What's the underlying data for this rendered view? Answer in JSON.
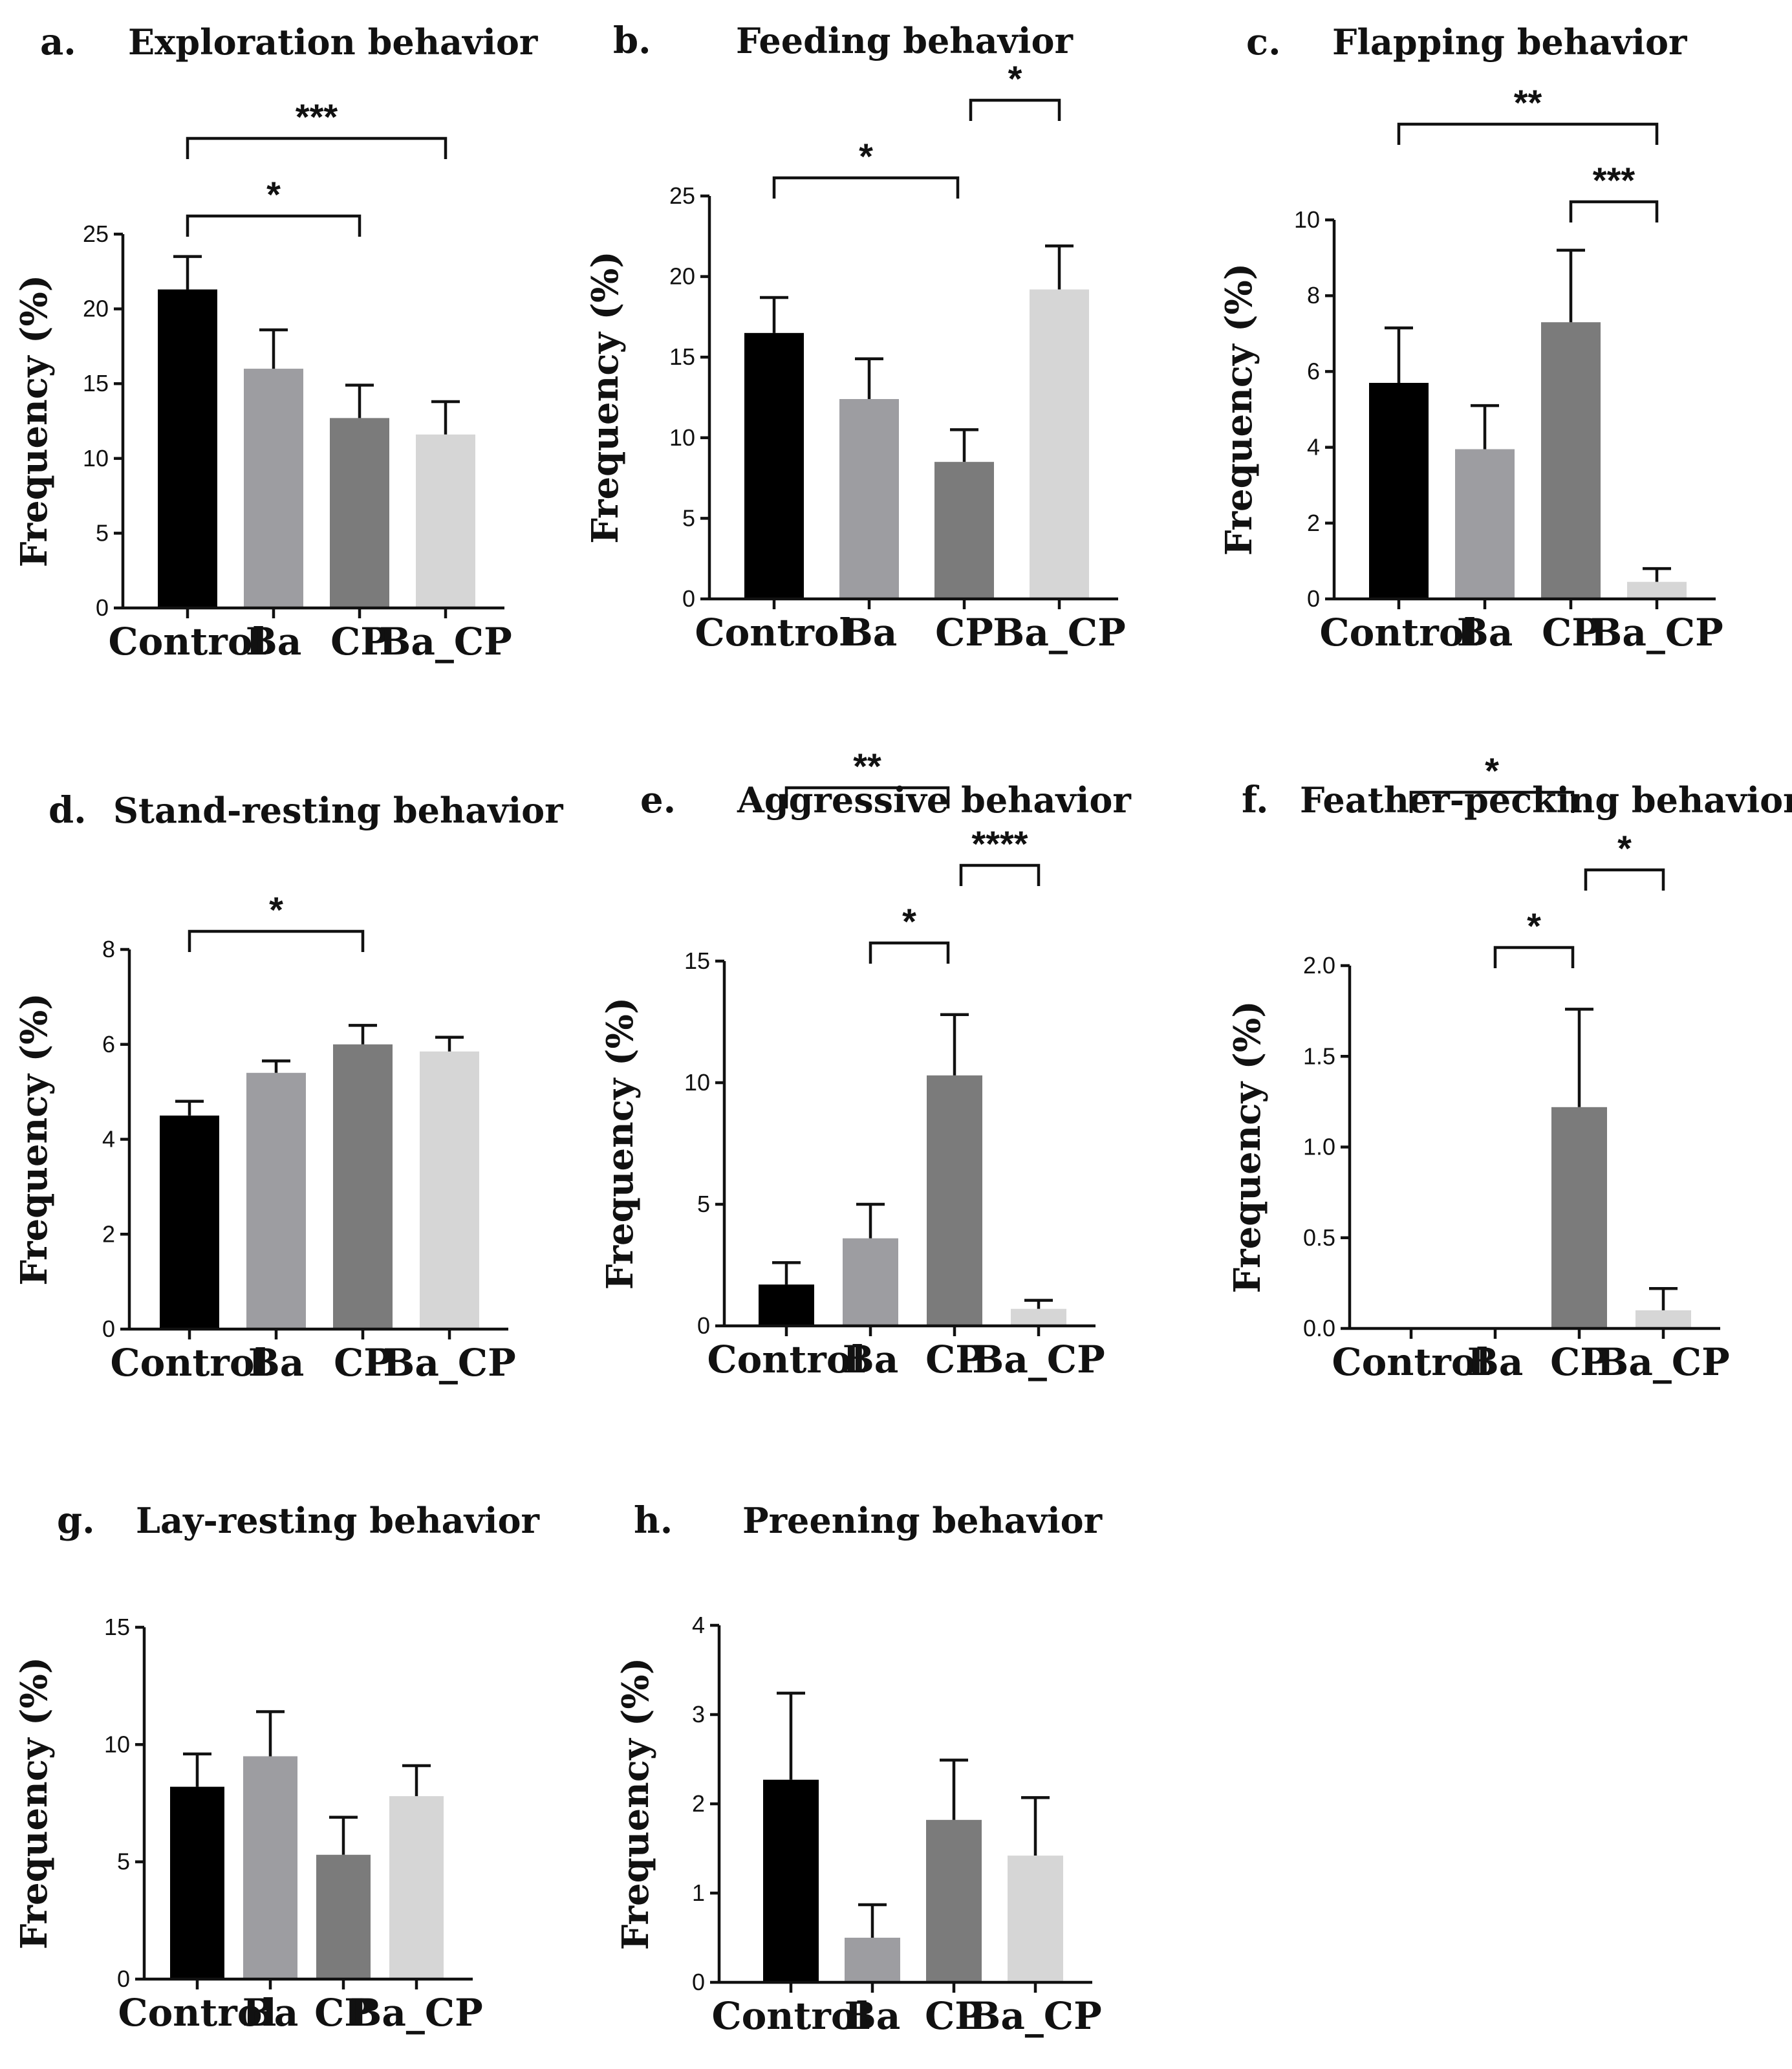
{
  "colors": {
    "Control": "#000000",
    "Ba": "#9d9da1",
    "CP": "#7b7b7b",
    "Ba_CP": "#d6d6d6",
    "axis": "#111111"
  },
  "chart_data": [
    {
      "type": "bar",
      "panel": "a.",
      "title": "Exploration behavior",
      "ylabel": "Frequency (%)",
      "xlabel": "",
      "categories": [
        "Control",
        "Ba",
        "CP",
        "Ba_CP"
      ],
      "values": [
        21.3,
        16.0,
        12.7,
        11.6
      ],
      "errors": [
        2.2,
        2.6,
        2.2,
        2.2
      ],
      "ylim": [
        0,
        25
      ],
      "yticks": [
        0,
        5,
        10,
        15,
        20,
        25
      ],
      "ytick_labels": [
        "0",
        "5",
        "10",
        "15",
        "20",
        "25"
      ],
      "significance": [
        {
          "from": 0,
          "to": 2,
          "label": "*"
        },
        {
          "from": 0,
          "to": 3,
          "label": "***"
        }
      ]
    },
    {
      "type": "bar",
      "panel": "b.",
      "title": "Feeding behavior",
      "ylabel": "Frequency (%)",
      "xlabel": "",
      "categories": [
        "Control",
        "Ba",
        "CP",
        "Ba_CP"
      ],
      "values": [
        16.5,
        12.4,
        8.5,
        19.2
      ],
      "errors": [
        2.2,
        2.5,
        2.0,
        2.7
      ],
      "ylim": [
        0,
        25
      ],
      "yticks": [
        0,
        5,
        10,
        15,
        20,
        25
      ],
      "ytick_labels": [
        "0",
        "5",
        "10",
        "15",
        "20",
        "25"
      ],
      "significance": [
        {
          "from": 0,
          "to": 2,
          "label": "*"
        },
        {
          "from": 2,
          "to": 3,
          "label": "*"
        }
      ]
    },
    {
      "type": "bar",
      "panel": "c.",
      "title": "Flapping behavior",
      "ylabel": "Frequency (%)",
      "xlabel": "",
      "categories": [
        "Control",
        "Ba",
        "CP",
        "Ba_CP"
      ],
      "values": [
        5.7,
        3.95,
        7.3,
        0.45
      ],
      "errors": [
        1.45,
        1.15,
        1.9,
        0.35
      ],
      "ylim": [
        0,
        10
      ],
      "yticks": [
        0,
        2,
        4,
        6,
        8,
        10
      ],
      "ytick_labels": [
        "0",
        "2",
        "4",
        "6",
        "8",
        "10"
      ],
      "significance": [
        {
          "from": 2,
          "to": 3,
          "label": "***"
        },
        {
          "from": 0,
          "to": 3,
          "label": "**"
        }
      ]
    },
    {
      "type": "bar",
      "panel": "d.",
      "title": "Stand-resting behavior",
      "ylabel": "Frequency (%)",
      "xlabel": "",
      "categories": [
        "Control",
        "Ba",
        "CP",
        "Ba_CP"
      ],
      "values": [
        4.5,
        5.4,
        6.0,
        5.85
      ],
      "errors": [
        0.3,
        0.25,
        0.4,
        0.3
      ],
      "ylim": [
        0,
        8
      ],
      "yticks": [
        0,
        2,
        4,
        6,
        8
      ],
      "ytick_labels": [
        "0",
        "2",
        "4",
        "6",
        "8"
      ],
      "significance": [
        {
          "from": 0,
          "to": 2,
          "label": "*"
        }
      ]
    },
    {
      "type": "bar",
      "panel": "e.",
      "title": "Aggressive behavior",
      "ylabel": "Frequency (%)",
      "xlabel": "",
      "categories": [
        "Control",
        "Ba",
        "CP",
        "Ba_CP"
      ],
      "values": [
        1.7,
        3.6,
        10.3,
        0.7
      ],
      "errors": [
        0.9,
        1.4,
        2.5,
        0.35
      ],
      "ylim": [
        0,
        15
      ],
      "yticks": [
        0,
        5,
        10,
        15
      ],
      "ytick_labels": [
        "0",
        "5",
        "10",
        "15"
      ],
      "significance": [
        {
          "from": 1,
          "to": 2,
          "label": "*"
        },
        {
          "from": 2,
          "to": 3,
          "label": "****"
        },
        {
          "from": 0,
          "to": 2,
          "label": "**"
        }
      ]
    },
    {
      "type": "bar",
      "panel": "f.",
      "title": "Feather-pecking behavior",
      "ylabel": "Frequency (%)",
      "xlabel": "",
      "categories": [
        "Control",
        "Ba",
        "CP",
        "Ba_CP"
      ],
      "values": [
        0.0,
        0.0,
        1.22,
        0.1
      ],
      "errors": [
        0.0,
        0.0,
        0.54,
        0.12
      ],
      "ylim": [
        0,
        2.0
      ],
      "yticks": [
        0,
        0.5,
        1.0,
        1.5,
        2.0
      ],
      "ytick_labels": [
        "0.0",
        "0.5",
        "1.0",
        "1.5",
        "2.0"
      ],
      "significance": [
        {
          "from": 1,
          "to": 2,
          "label": "*"
        },
        {
          "from": 2,
          "to": 3,
          "label": "*"
        },
        {
          "from": 0,
          "to": 2,
          "label": "*"
        }
      ]
    },
    {
      "type": "bar",
      "panel": "g.",
      "title": "Lay-resting behavior",
      "ylabel": "Frequency (%)",
      "xlabel": "",
      "categories": [
        "Control",
        "Ba",
        "CP",
        "Ba_CP"
      ],
      "values": [
        8.2,
        9.5,
        5.3,
        7.8
      ],
      "errors": [
        1.4,
        1.9,
        1.6,
        1.3
      ],
      "ylim": [
        0,
        15
      ],
      "yticks": [
        0,
        5,
        10,
        15
      ],
      "ytick_labels": [
        "0",
        "5",
        "10",
        "15"
      ],
      "significance": []
    },
    {
      "type": "bar",
      "panel": "h.",
      "title": "Preening behavior",
      "ylabel": "Frequency (%)",
      "xlabel": "",
      "categories": [
        "Control",
        "Ba",
        "CP",
        "Ba_CP"
      ],
      "values": [
        2.27,
        0.5,
        1.82,
        1.42
      ],
      "errors": [
        0.97,
        0.37,
        0.67,
        0.65
      ],
      "ylim": [
        0,
        4
      ],
      "yticks": [
        0,
        1,
        2,
        3,
        4
      ],
      "ytick_labels": [
        "0",
        "1",
        "2",
        "3",
        "4"
      ],
      "significance": []
    }
  ]
}
